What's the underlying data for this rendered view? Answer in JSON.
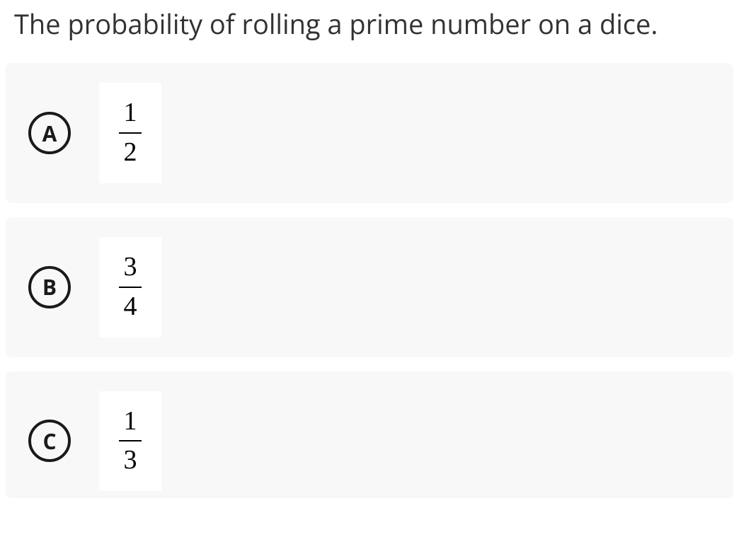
{
  "question": "The probability of rolling a prime number on a dice.",
  "options": [
    {
      "letter": "A",
      "numerator": "1",
      "denominator": "2"
    },
    {
      "letter": "B",
      "numerator": "3",
      "denominator": "4"
    },
    {
      "letter": "C",
      "numerator": "1",
      "denominator": "3"
    }
  ],
  "style": {
    "page_background": "#ffffff",
    "option_background": "#f8f8f8",
    "fraction_box_background": "#ffffff",
    "text_color": "#333333",
    "badge_border_color": "#1a1a1a",
    "badge_text_color": "#1a1a1a",
    "fraction_color": "#000000",
    "question_fontsize": 38,
    "badge_fontsize": 30,
    "fraction_fontsize": 38,
    "badge_border_width": 4,
    "option_border_radius": 8
  }
}
